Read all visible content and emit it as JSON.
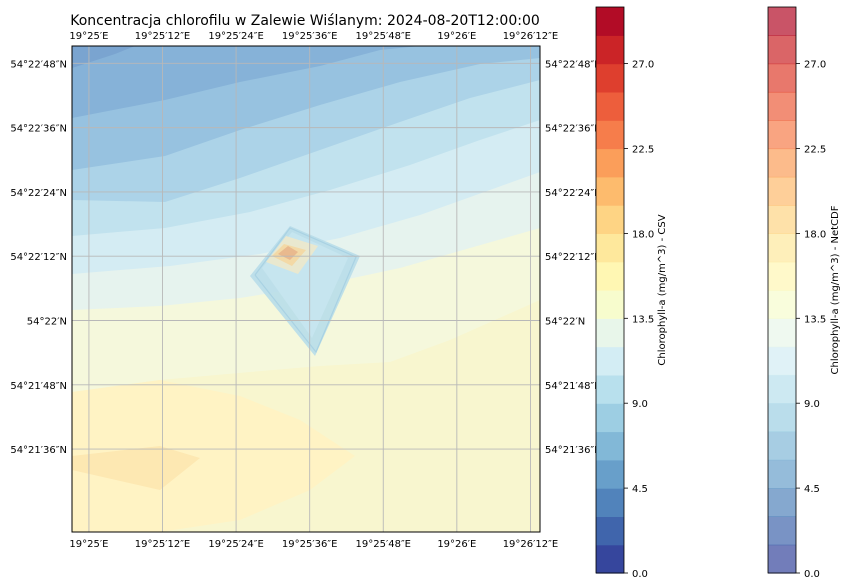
{
  "chart_data": {
    "type": "heatmap",
    "title": "Koncentracja chlorofilu w Zalewie Wiślanym: 2024-08-20T12:00:00",
    "x_tick_labels": [
      "19°25′E",
      "19°25′12″E",
      "19°25′24″E",
      "19°25′36″E",
      "19°25′48″E",
      "19°26′E",
      "19°26′12″E"
    ],
    "y_tick_labels": [
      "54°22′48″N",
      "54°22′36″N",
      "54°22′24″N",
      "54°22′12″N",
      "54°22′N",
      "54°21′48″N",
      "54°21′36″N"
    ],
    "x_ticks_deg": [
      19.416667,
      19.42,
      19.423333,
      19.426667,
      19.43,
      19.433333,
      19.436667
    ],
    "y_ticks_deg": [
      54.38,
      54.376667,
      54.373333,
      54.37,
      54.366667,
      54.363333,
      54.36
    ],
    "xlim_deg": [
      19.4159,
      19.4371
    ],
    "ylim_deg": [
      54.3557,
      54.3809
    ],
    "grid": true,
    "levels_step": 1.5,
    "vmin": 0.0,
    "vmax": 30.0,
    "field_description_values": {
      "north_west_corner": 5.5,
      "north_east_corner": 9.0,
      "center": 12.0,
      "south_area": 15.0,
      "south_west_patch": 16.5
    },
    "colorbars": [
      {
        "label": "Chlorophyll-a (mg/m^3) - CSV",
        "ticks": [
          "0.0",
          "4.5",
          "9.0",
          "13.5",
          "18.0",
          "22.5",
          "27.0"
        ],
        "alpha": 1.0
      },
      {
        "label": "Chlorophyll-a (mg/m^3) - NetCDF",
        "ticks": [
          "0.0",
          "4.5",
          "9.0",
          "13.5",
          "18.0",
          "22.5",
          "27.0"
        ],
        "alpha": 0.7
      }
    ],
    "colormap": [
      "#313695",
      "#4575b4",
      "#74add1",
      "#abd9e9",
      "#e0f3f8",
      "#ffffbf",
      "#fee090",
      "#fdae61",
      "#f46d43",
      "#d73027",
      "#a50026"
    ]
  }
}
